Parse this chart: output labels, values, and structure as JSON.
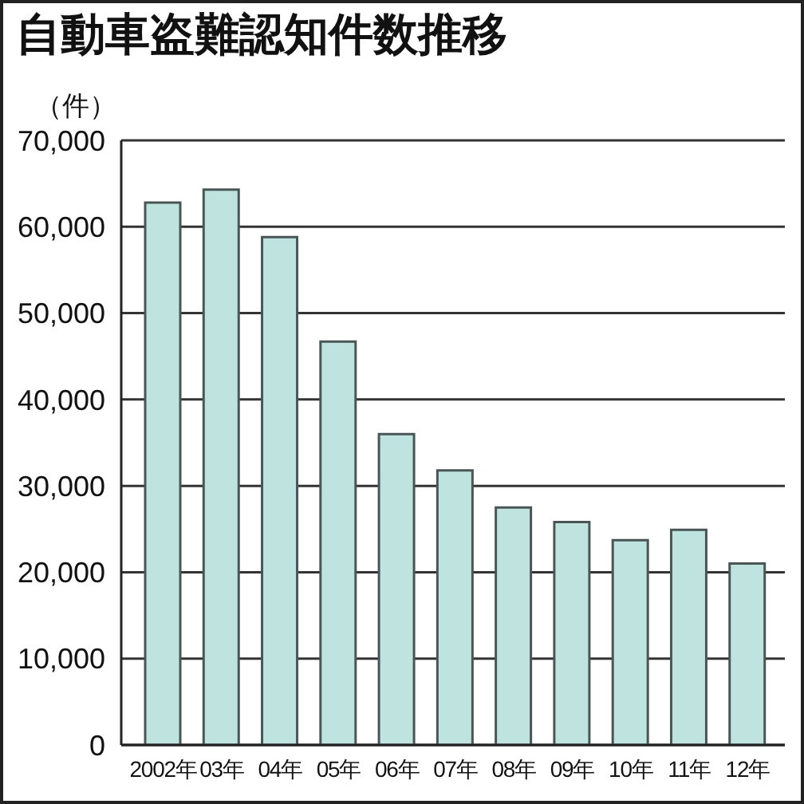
{
  "chart_data": {
    "type": "bar",
    "title": "自動車盗難認知件数推移",
    "ylabel": "（件）",
    "categories": [
      "2002年",
      "03年",
      "04年",
      "05年",
      "06年",
      "07年",
      "08年",
      "09年",
      "10年",
      "11年",
      "12年"
    ],
    "values": [
      62800,
      64300,
      58800,
      46700,
      36000,
      31800,
      27500,
      25800,
      23700,
      24900,
      21000
    ],
    "color": "#bfe3df",
    "ylim": [
      0,
      70000
    ],
    "yticks": [
      0,
      {
        "value": 10000,
        "label": "10,000"
      },
      {
        "value": 20000,
        "label": "20,000"
      },
      {
        "value": 30000,
        "label": "30,000"
      },
      {
        "value": 40000,
        "label": "40,000"
      },
      {
        "value": 50000,
        "label": "50,000"
      },
      {
        "value": 60000,
        "label": "60,000"
      },
      {
        "value": 70000,
        "label": "70,000"
      }
    ],
    "grid": "y"
  }
}
